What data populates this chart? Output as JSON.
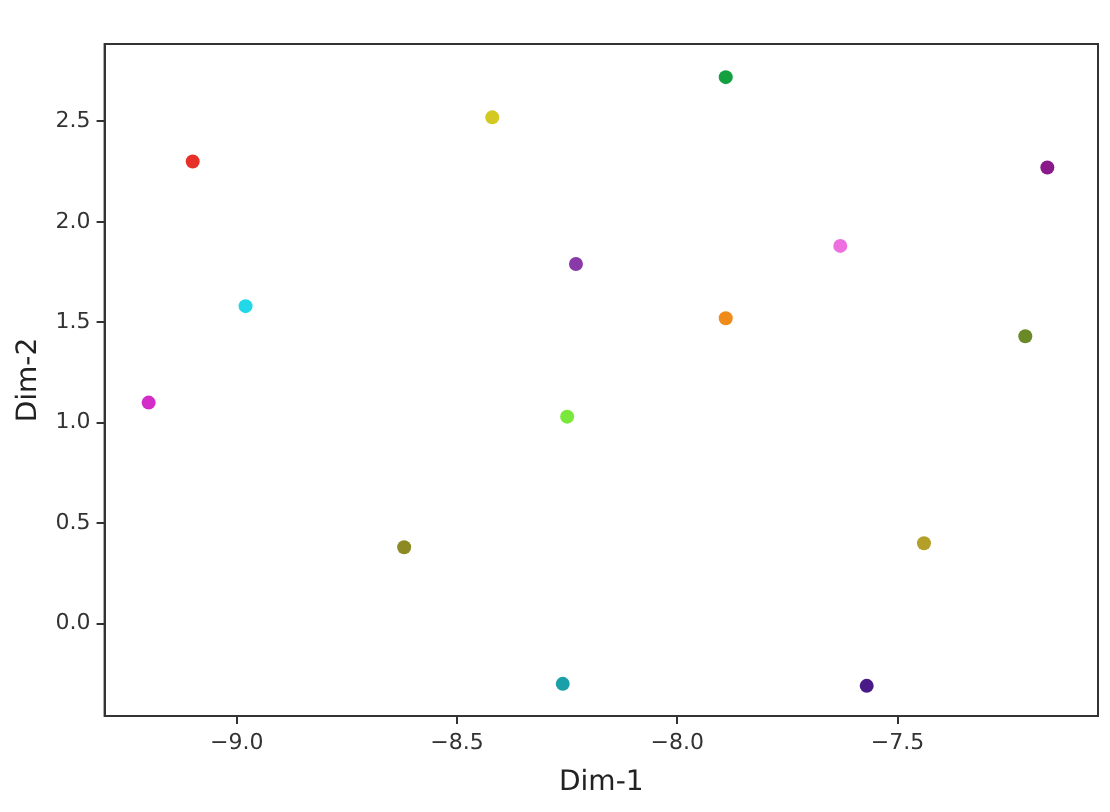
{
  "chart_data": {
    "type": "scatter",
    "xlabel": "Dim-1",
    "ylabel": "Dim-2",
    "x": [
      -9.1,
      -8.98,
      -9.2,
      -8.62,
      -8.42,
      -8.23,
      -8.25,
      -8.26,
      -7.89,
      -7.89,
      -7.63,
      -7.44,
      -7.57,
      -7.21,
      -7.16
    ],
    "values": [
      2.3,
      1.58,
      1.1,
      0.38,
      2.52,
      1.79,
      1.03,
      -0.3,
      2.72,
      1.52,
      1.88,
      0.4,
      -0.31,
      1.43,
      2.27
    ],
    "colors": [
      "#e8302a",
      "#22d8e8",
      "#d42cc8",
      "#8c8a22",
      "#d4c822",
      "#8a3aa8",
      "#78e83a",
      "#1aa0a8",
      "#15a040",
      "#f08a18",
      "#ee70e0",
      "#b4a028",
      "#4a1a88",
      "#6a8a28",
      "#8a1a8a"
    ],
    "marker": "circle",
    "xlim": [
      -9.3,
      -7.045
    ],
    "xticks": [
      {
        "value": -9,
        "label": "−9.0"
      },
      {
        "value": -8.5,
        "label": "−8.5"
      },
      {
        "value": -8,
        "label": "−8.0"
      },
      {
        "value": -7.5,
        "label": "−7.5"
      }
    ],
    "ylim": [
      -0.46,
      2.885
    ],
    "yticks": [
      {
        "value": 0,
        "label": "0.0"
      },
      {
        "value": 0.5,
        "label": "0.5"
      },
      {
        "value": 1,
        "label": "1.0"
      },
      {
        "value": 1.5,
        "label": "1.5"
      },
      {
        "value": 2,
        "label": "2.0"
      },
      {
        "value": 2.5,
        "label": "2.5"
      }
    ],
    "grid": false,
    "legend": false
  }
}
